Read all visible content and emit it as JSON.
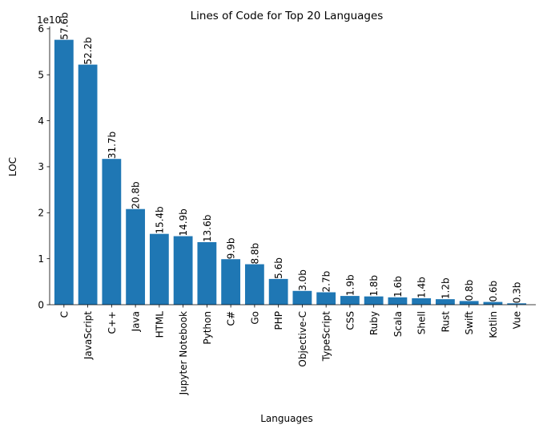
{
  "chart_data": {
    "type": "bar",
    "title": "Lines of Code for Top 20 Languages",
    "xlabel": "Languages",
    "ylabel": "LOC",
    "y_offset_text": "1e10",
    "ylim": [
      0,
      6.05
    ],
    "y_ticks": [
      "0",
      "1",
      "2",
      "3",
      "4",
      "5",
      "6"
    ],
    "grid": false,
    "color": "#1f77b4",
    "categories": [
      "C",
      "JavaScript",
      "C++",
      "Java",
      "HTML",
      "Jupyter Notebook",
      "Python",
      "C#",
      "Go",
      "PHP",
      "Objective-C",
      "TypeScript",
      "CSS",
      "Ruby",
      "Scala",
      "Shell",
      "Rust",
      "Swift",
      "Kotlin",
      "Vue"
    ],
    "values": [
      5.76,
      5.22,
      3.17,
      2.08,
      1.54,
      1.49,
      1.36,
      0.99,
      0.88,
      0.56,
      0.3,
      0.27,
      0.19,
      0.18,
      0.16,
      0.14,
      0.12,
      0.08,
      0.06,
      0.03
    ],
    "value_labels": [
      "57.6b",
      "52.2b",
      "31.7b",
      "20.8b",
      "15.4b",
      "14.9b",
      "13.6b",
      "9.9b",
      "8.8b",
      "5.6b",
      "3.0b",
      "2.7b",
      "1.9b",
      "1.8b",
      "1.6b",
      "1.4b",
      "1.2b",
      "0.8b",
      "0.6b",
      "0.3b"
    ]
  }
}
